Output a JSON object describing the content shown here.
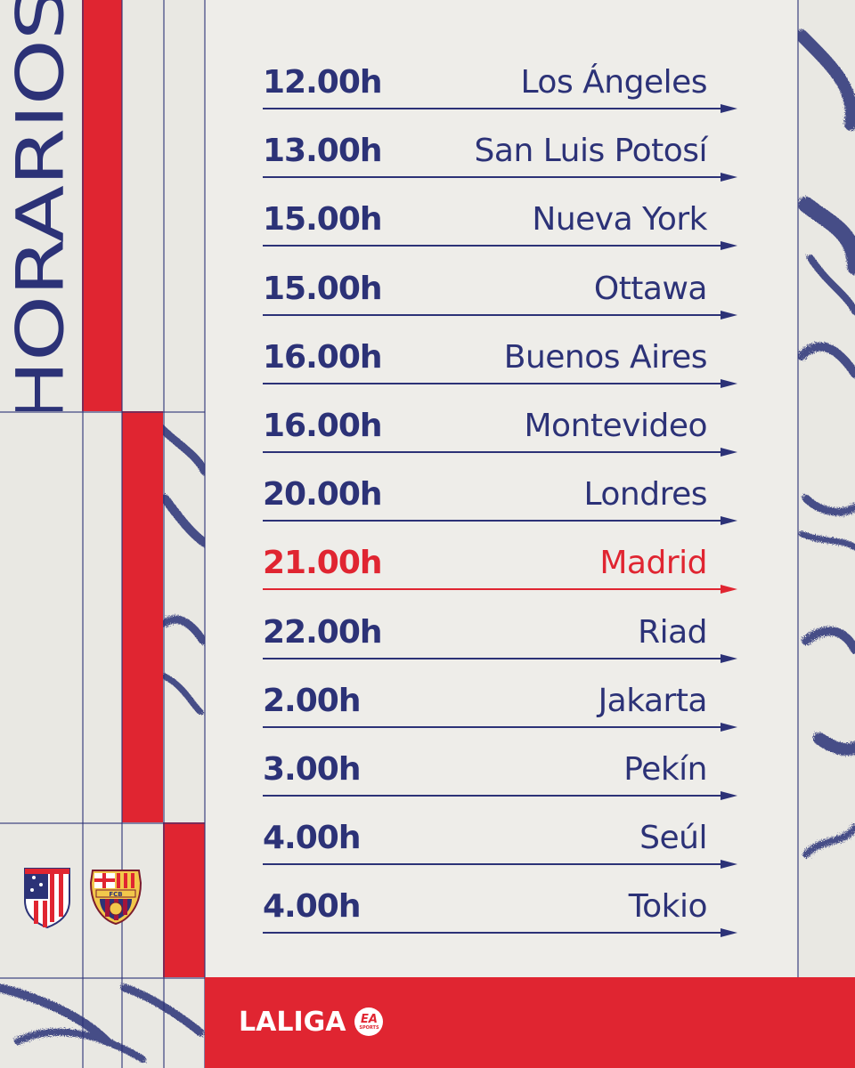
{
  "title": "HORARIOS",
  "schedule": [
    {
      "time": "12.00h",
      "city": "Los Ángeles",
      "highlight": false
    },
    {
      "time": "13.00h",
      "city": "San Luis Potosí",
      "highlight": false
    },
    {
      "time": "15.00h",
      "city": "Nueva York",
      "highlight": false
    },
    {
      "time": "15.00h",
      "city": "Ottawa",
      "highlight": false
    },
    {
      "time": "16.00h",
      "city": "Buenos Aires",
      "highlight": false
    },
    {
      "time": "16.00h",
      "city": "Montevideo",
      "highlight": false
    },
    {
      "time": "20.00h",
      "city": "Londres",
      "highlight": false
    },
    {
      "time": "21.00h",
      "city": "Madrid",
      "highlight": true
    },
    {
      "time": "22.00h",
      "city": "Riad",
      "highlight": false
    },
    {
      "time": "2.00h",
      "city": "Jakarta",
      "highlight": false
    },
    {
      "time": "3.00h",
      "city": "Pekín",
      "highlight": false
    },
    {
      "time": "4.00h",
      "city": "Seúl",
      "highlight": false
    },
    {
      "time": "4.00h",
      "city": "Tokio",
      "highlight": false
    }
  ],
  "footer": {
    "brand": "LALIGA",
    "sponsor_main": "EA",
    "sponsor_sub": "SPORTS"
  },
  "crests": {
    "home_icon": "atletico-madrid-crest-icon",
    "away_icon": "fc-barcelona-crest-icon",
    "away_letters": "FCB"
  },
  "colors": {
    "navy": "#2c3277",
    "red": "#e02531",
    "background": "#e9e8e3",
    "white": "#ffffff"
  }
}
